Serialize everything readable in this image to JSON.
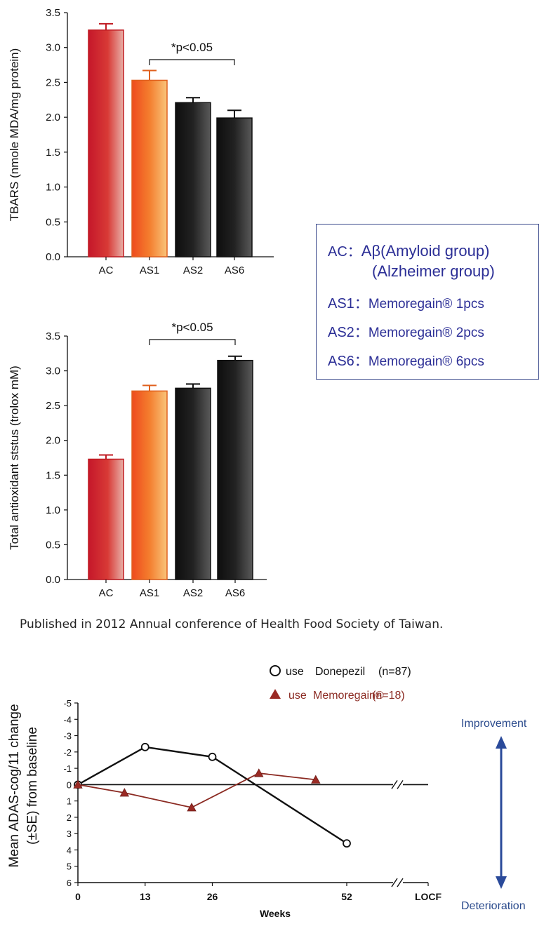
{
  "chart_data": [
    {
      "type": "bar",
      "title": "",
      "xlabel": "",
      "ylabel": "TBARS (nmole MDA/mg protein)",
      "categories": [
        "AC",
        "AS1",
        "AS2",
        "AS6"
      ],
      "values": [
        3.25,
        2.53,
        2.21,
        1.99
      ],
      "errors": [
        0.09,
        0.14,
        0.07,
        0.11
      ],
      "ylim": [
        0,
        3.5
      ],
      "yticks": [
        "0.0",
        "0.5",
        "1.0",
        "1.5",
        "2.0",
        "2.5",
        "3.0",
        "3.5"
      ],
      "annotation": {
        "text": "*p<0.05",
        "from": "AS1",
        "to": "AS6"
      },
      "colors": [
        "#d42a2e",
        "#f07a2c",
        "#1c1c1c",
        "#1c1c1c"
      ]
    },
    {
      "type": "bar",
      "title": "",
      "xlabel": "",
      "ylabel": "Total antioxidant ststus (trolox mM)",
      "categories": [
        "AC",
        "AS1",
        "AS2",
        "AS6"
      ],
      "values": [
        1.73,
        2.71,
        2.75,
        3.15
      ],
      "errors": [
        0.06,
        0.08,
        0.06,
        0.06
      ],
      "ylim": [
        0,
        3.5
      ],
      "yticks": [
        "0.0",
        "0.5",
        "1.0",
        "1.5",
        "2.0",
        "2.5",
        "3.0",
        "3.5"
      ],
      "annotation": {
        "text": "*p<0.05",
        "from": "AS1",
        "to": "AS6"
      },
      "colors": [
        "#d42a2e",
        "#f07a2c",
        "#1c1c1c",
        "#1c1c1c"
      ]
    },
    {
      "type": "line",
      "title": "",
      "xlabel": "Weeks",
      "ylabel_lines": [
        "Mean ADAS-cog/11 change",
        "(±SE) from baseline"
      ],
      "x_tick_labels": [
        "0",
        "13",
        "26",
        "52",
        "LOCF"
      ],
      "y_tick_labels": [
        "-5",
        "-4",
        "-3",
        "-2",
        "-1",
        "0",
        "1",
        "2",
        "3",
        "4",
        "5",
        "6"
      ],
      "ylim": [
        -5,
        6
      ],
      "y_inverted": true,
      "series": [
        {
          "name_prefix": "use",
          "name_main": "Donepezil",
          "name_suffix": "(n=87)",
          "marker": "circle",
          "color": "#111111",
          "x": [
            0,
            13,
            26,
            52
          ],
          "y": [
            0,
            -2.3,
            -1.7,
            3.6
          ]
        },
        {
          "name_prefix": "use",
          "name_main": "Memoregain®",
          "name_suffix": "(n=18)",
          "marker": "triangle",
          "color": "#8b2a22",
          "x": [
            0,
            9,
            22,
            35,
            46
          ],
          "y": [
            0,
            0.5,
            1.4,
            -0.7,
            -0.3
          ]
        }
      ],
      "side_labels": {
        "top": "Improvement",
        "bottom": "Deterioration"
      }
    }
  ],
  "legend": [
    {
      "code": "AC",
      "sep": "：",
      "text": "Aβ(Amyloid group)",
      "text2": "(Alzheimer group)"
    },
    {
      "code": "AS1",
      "sep": "：",
      "text": "Memoregain® 1pcs"
    },
    {
      "code": "AS2",
      "sep": "：",
      "text": "Memoregain® 2pcs"
    },
    {
      "code": "AS6",
      "sep": "：",
      "text": "Memoregain® 6pcs"
    }
  ],
  "caption": "Published in 2012 Annual conference of Health Food Society of Taiwan."
}
